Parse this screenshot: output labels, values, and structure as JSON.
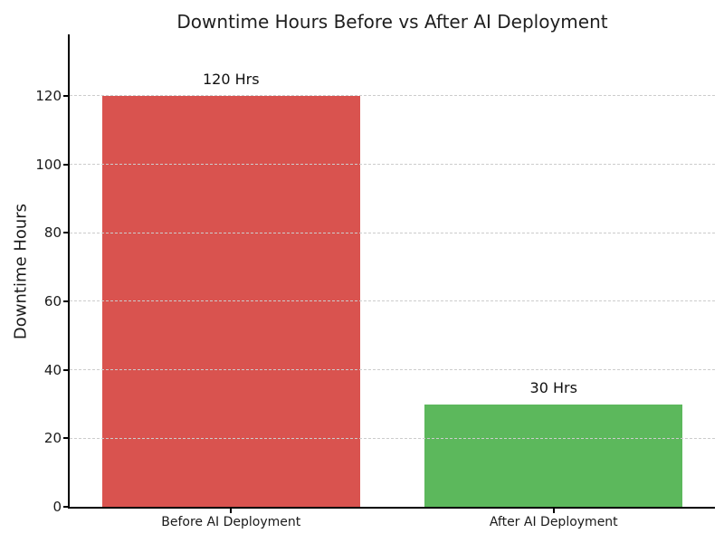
{
  "chart_data": {
    "type": "bar",
    "title": "Downtime Hours Before vs After AI Deployment",
    "xlabel": "",
    "ylabel": "Downtime Hours",
    "categories": [
      "Before AI Deployment",
      "After AI Deployment"
    ],
    "values": [
      120,
      30
    ],
    "bar_labels": [
      "120 Hrs",
      "30 Hrs"
    ],
    "bar_colors": [
      "#d9534f",
      "#5cb85c"
    ],
    "yticks": [
      0,
      20,
      40,
      60,
      80,
      100,
      120
    ],
    "ytick_labels": [
      "0",
      "20",
      "40",
      "60",
      "80",
      "100",
      "120"
    ],
    "ylim": [
      0,
      138
    ],
    "grid": "horizontal-dashed",
    "legend": "none"
  },
  "colors": {
    "background": "#ffffff",
    "grid": "#cccccc",
    "spine": "#000000",
    "text": "#1a1a1a",
    "bar_before": "#d9534f",
    "bar_after": "#5cb85c"
  }
}
